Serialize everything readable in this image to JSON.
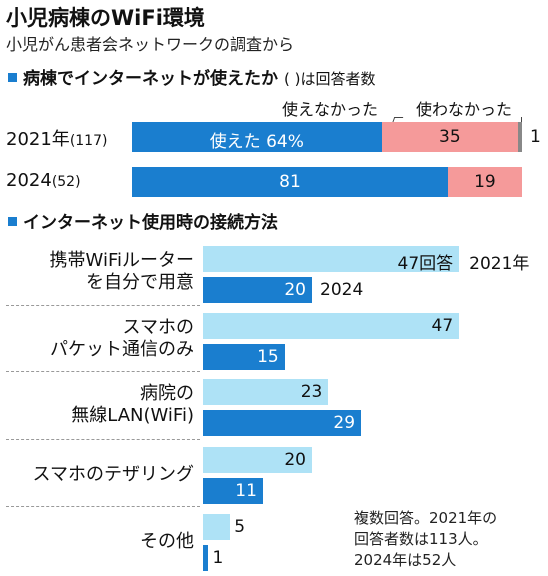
{
  "title": "小児病棟のWiFi環境",
  "subtitle": "小児がん患者会ネットワークの調査から",
  "section1": {
    "heading": "病棟でインターネットが使えたか",
    "note": "( )は回答者数",
    "legend_cannot": "使えなかった",
    "legend_didnt": "使わなかった",
    "colors": {
      "could": "#1a7ecf",
      "could_not": "#f59a9a",
      "did_not": "#888888"
    },
    "rows": [
      {
        "year": "2021年",
        "n": "(117)",
        "could": 64,
        "could_label": "使えた 64%",
        "could_not": 35,
        "could_not_label": "35",
        "did_not": 1,
        "did_not_label": "1"
      },
      {
        "year": "2024",
        "n": "(52)",
        "could": 81,
        "could_label": "81",
        "could_not": 19,
        "could_not_label": "19"
      }
    ]
  },
  "section2": {
    "heading": "インターネット使用時の接続方法",
    "colors": {
      "y2021": "#aee2f6",
      "y2024": "#1a7ecf"
    },
    "legend_2021": "2021年",
    "legend_2024": "2024",
    "unit_label": "47回答",
    "categories": [
      {
        "line1": "携帯WiFiルーター",
        "line2": "を自分で用意",
        "v2021": 47,
        "v2024": 20
      },
      {
        "line1": "スマホの",
        "line2": "パケット通信のみ",
        "v2021": 47,
        "v2024": 15
      },
      {
        "line1": "病院の",
        "line2": "無線LAN(WiFi)",
        "v2021": 23,
        "v2024": 29
      },
      {
        "line1": "スマホのテザリング",
        "line2": "",
        "v2021": 20,
        "v2024": 11
      },
      {
        "line1": "その他",
        "line2": "",
        "v2021": 5,
        "v2024": 1
      }
    ]
  },
  "note": "複数回答。2021年の\n回答者数は113人。\n2024年は52人",
  "chart_data": [
    {
      "type": "bar",
      "title": "病棟でインターネットが使えたか",
      "categories": [
        "2021年",
        "2024"
      ],
      "series": [
        {
          "name": "使えた",
          "values": [
            64,
            81
          ]
        },
        {
          "name": "使えなかった",
          "values": [
            35,
            19
          ]
        },
        {
          "name": "使わなかった",
          "values": [
            1,
            0
          ]
        }
      ]
    },
    {
      "type": "bar",
      "title": "インターネット使用時の接続方法",
      "categories": [
        "携帯WiFiルーターを自分で用意",
        "スマホのパケット通信のみ",
        "病院の無線LAN(WiFi)",
        "スマホのテザリング",
        "その他"
      ],
      "series": [
        {
          "name": "2021年",
          "values": [
            47,
            47,
            23,
            20,
            5
          ]
        },
        {
          "name": "2024",
          "values": [
            20,
            15,
            29,
            11,
            1
          ]
        }
      ]
    }
  ]
}
